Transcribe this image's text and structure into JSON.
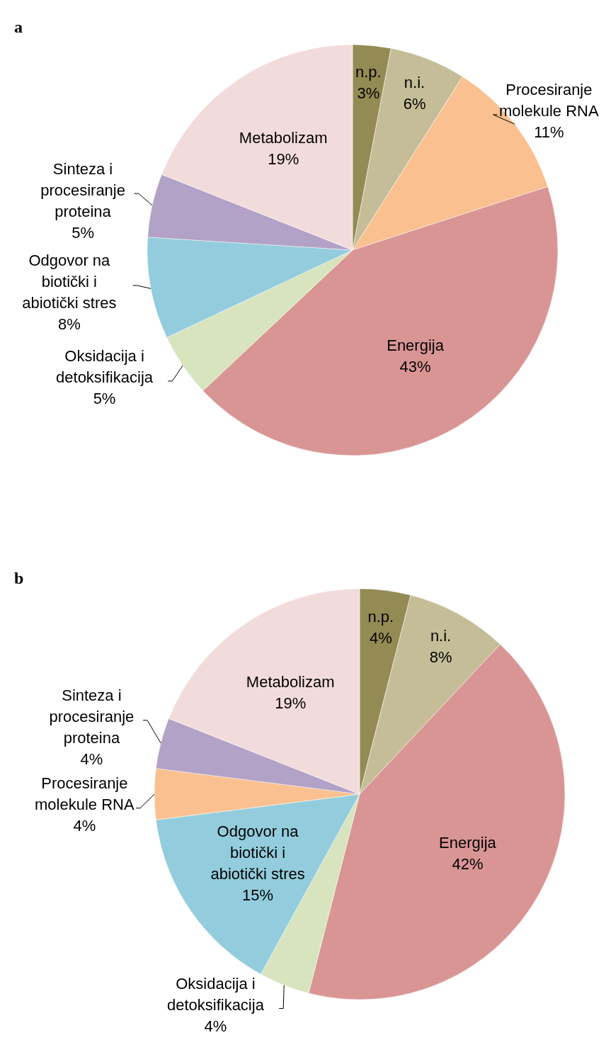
{
  "chart_data": [
    {
      "type": "pie",
      "title": "a",
      "categories": [
        "n.p.",
        "n.i.",
        "Procesiranje molekule RNA",
        "Energija",
        "Oksidacija i detoksifikacija",
        "Odgovor na biotički i abiotički stres",
        "Sinteza i procesiranje proteina",
        "Metabolizam"
      ],
      "values": [
        3,
        6,
        11,
        43,
        5,
        8,
        5,
        19
      ],
      "value_labels": [
        "3%",
        "6%",
        "11%",
        "43%",
        "5%",
        "8%",
        "5%",
        "19%"
      ],
      "colors": [
        "#948a54",
        "#c4bd97",
        "#fac090",
        "#d99594",
        "#d7e4bd",
        "#93cddd",
        "#b3a2c7",
        "#f2dcdb"
      ]
    },
    {
      "type": "pie",
      "title": "b",
      "categories": [
        "n.p.",
        "n.i.",
        "Energija",
        "Oksidacija i detoksifikacija",
        "Odgovor na biotički i abiotički stres",
        "Procesiranje molekule RNA",
        "Sinteza i procesiranje proteina",
        "Metabolizam"
      ],
      "values": [
        4,
        8,
        42,
        4,
        15,
        4,
        4,
        19
      ],
      "value_labels": [
        "4%",
        "8%",
        "42%",
        "4%",
        "15%",
        "4%",
        "4%",
        "19%"
      ],
      "colors": [
        "#948a54",
        "#c4bd97",
        "#d99594",
        "#d7e4bd",
        "#93cddd",
        "#fac090",
        "#b3a2c7",
        "#f2dcdb"
      ]
    }
  ]
}
